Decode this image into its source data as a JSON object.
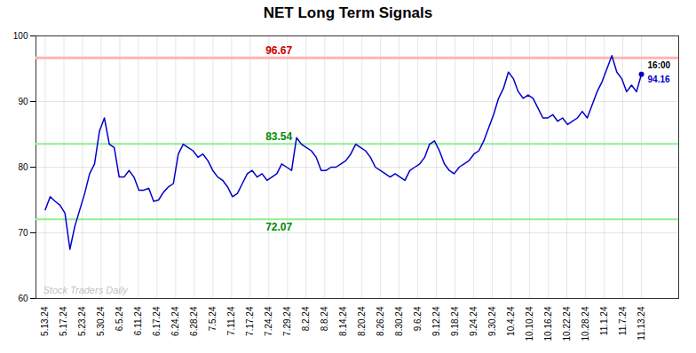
{
  "chart_data": {
    "type": "line",
    "title": "NET Long Term Signals",
    "color": "#0000cc",
    "grid": true,
    "xlim": [
      -0.5,
      34
    ],
    "xticks": [
      {
        "value": 0,
        "label": "5.13.24"
      },
      {
        "value": 1,
        "label": "5.17.24"
      },
      {
        "value": 2,
        "label": "5.23.24"
      },
      {
        "value": 3,
        "label": "5.30.24"
      },
      {
        "value": 4,
        "label": "6.5.24"
      },
      {
        "value": 5,
        "label": "6.11.24"
      },
      {
        "value": 6,
        "label": "6.17.24"
      },
      {
        "value": 7,
        "label": "6.24.24"
      },
      {
        "value": 8,
        "label": "6.28.24"
      },
      {
        "value": 9,
        "label": "7.5.24"
      },
      {
        "value": 10,
        "label": "7.11.24"
      },
      {
        "value": 11,
        "label": "7.17.24"
      },
      {
        "value": 12,
        "label": "7.24.24"
      },
      {
        "value": 13,
        "label": "7.29.24"
      },
      {
        "value": 14,
        "label": "8.2.24"
      },
      {
        "value": 15,
        "label": "8.8.24"
      },
      {
        "value": 16,
        "label": "8.14.24"
      },
      {
        "value": 17,
        "label": "8.20.24"
      },
      {
        "value": 18,
        "label": "8.26.24"
      },
      {
        "value": 19,
        "label": "8.30.24"
      },
      {
        "value": 20,
        "label": "9.6.24"
      },
      {
        "value": 21,
        "label": "9.12.24"
      },
      {
        "value": 22,
        "label": "9.18.24"
      },
      {
        "value": 23,
        "label": "9.24.24"
      },
      {
        "value": 24,
        "label": "9.30.24"
      },
      {
        "value": 25,
        "label": "10.4.24"
      },
      {
        "value": 26,
        "label": "10.10.24"
      },
      {
        "value": 27,
        "label": "10.16.24"
      },
      {
        "value": 28,
        "label": "10.22.24"
      },
      {
        "value": 29,
        "label": "10.28.24"
      },
      {
        "value": 30,
        "label": "11.1.24"
      },
      {
        "value": 31,
        "label": "11.7.24"
      },
      {
        "value": 32,
        "label": "11.13.24"
      }
    ],
    "ylim": [
      60,
      100
    ],
    "yticks": [
      60,
      70,
      80,
      90,
      100
    ],
    "x": [
      0,
      0.2645,
      0.5289,
      0.7934,
      1.0579,
      1.3223,
      1.5868,
      1.8512,
      2.1157,
      2.3802,
      2.6446,
      2.9091,
      3.1736,
      3.438,
      3.7025,
      3.9669,
      4.2314,
      4.4959,
      4.7603,
      5.0248,
      5.2893,
      5.5537,
      5.8182,
      6.0826,
      6.3471,
      6.6116,
      6.876,
      7.1405,
      7.405,
      7.6694,
      7.9339,
      8.1983,
      8.4628,
      8.7273,
      8.9917,
      9.2562,
      9.5207,
      9.7851,
      10.0496,
      10.314,
      10.5785,
      10.843,
      11.1074,
      11.3719,
      11.6364,
      11.9008,
      12.1653,
      12.4298,
      12.6942,
      12.9587,
      13.2231,
      13.4876,
      13.7521,
      14.0165,
      14.281,
      14.5455,
      14.8099,
      15.0744,
      15.3388,
      15.6033,
      15.8678,
      16.1322,
      16.3967,
      16.6612,
      16.9256,
      17.1901,
      17.4545,
      17.719,
      17.9835,
      18.2479,
      18.5124,
      18.7769,
      19.0413,
      19.3058,
      19.5702,
      19.8347,
      20.0992,
      20.3636,
      20.6281,
      20.8926,
      21.157,
      21.4215,
      21.686,
      21.9504,
      22.2149,
      22.4793,
      22.7438,
      23.0083,
      23.2727,
      23.5372,
      23.8017,
      24.0661,
      24.3306,
      24.595,
      24.8595,
      25.124,
      25.3884,
      25.6529,
      25.9174,
      26.1818,
      26.4463,
      26.7107,
      26.9752,
      27.2397,
      27.5041,
      27.7686,
      28.0331,
      28.2975,
      28.562,
      28.8264,
      29.0909,
      29.3554,
      29.6198,
      29.8843,
      30.1488,
      30.4132,
      30.6777,
      30.9421,
      31.2066,
      31.4711,
      31.7355,
      32
    ],
    "values": [
      73.5,
      75.5,
      74.8,
      74.2,
      73.0,
      67.5,
      71.0,
      73.5,
      76.0,
      79.0,
      80.5,
      85.5,
      87.5,
      83.5,
      83.0,
      78.5,
      78.5,
      79.5,
      78.5,
      76.5,
      76.5,
      76.8,
      74.8,
      75.0,
      76.2,
      77.0,
      77.5,
      82.0,
      83.5,
      83.0,
      82.5,
      81.5,
      82.0,
      81.0,
      79.5,
      78.5,
      78.0,
      77.0,
      75.5,
      76.0,
      77.5,
      79.0,
      79.5,
      78.5,
      79.0,
      78.0,
      78.5,
      79.0,
      80.5,
      80.0,
      79.5,
      84.5,
      83.5,
      83.0,
      82.5,
      81.5,
      79.5,
      79.5,
      80.0,
      80.0,
      80.5,
      81.0,
      82.0,
      83.5,
      83.0,
      82.5,
      81.5,
      80.0,
      79.5,
      79.0,
      78.5,
      79.0,
      78.5,
      78.0,
      79.5,
      80.0,
      80.5,
      81.5,
      83.5,
      84.0,
      82.5,
      80.5,
      79.5,
      79.0,
      80.0,
      80.5,
      81.0,
      82.0,
      82.5,
      84.0,
      86.0,
      88.0,
      90.5,
      92.0,
      94.5,
      93.5,
      91.5,
      90.5,
      91.0,
      90.5,
      89.0,
      87.5,
      87.5,
      88.0,
      87.0,
      87.5,
      86.5,
      87.0,
      87.5,
      88.5,
      87.5,
      89.5,
      91.5,
      93.0,
      95.0,
      97.0,
      94.5,
      93.5,
      91.5,
      92.5,
      91.5,
      94.16
    ],
    "hlines": [
      {
        "value": 96.67,
        "color": "#ffb3b3",
        "label_color": "#cc0000"
      },
      {
        "value": 83.54,
        "color": "#90ee90",
        "label_color": "#008800"
      },
      {
        "value": 72.07,
        "color": "#90ee90",
        "label_color": "#008800"
      }
    ],
    "end_labels": [
      {
        "text": "16:00",
        "color": "#000000"
      },
      {
        "text": "94.16",
        "color": "#0000cc"
      }
    ],
    "watermark": {
      "text": "Stock Traders Daily",
      "color": "#b0b0b0"
    }
  }
}
